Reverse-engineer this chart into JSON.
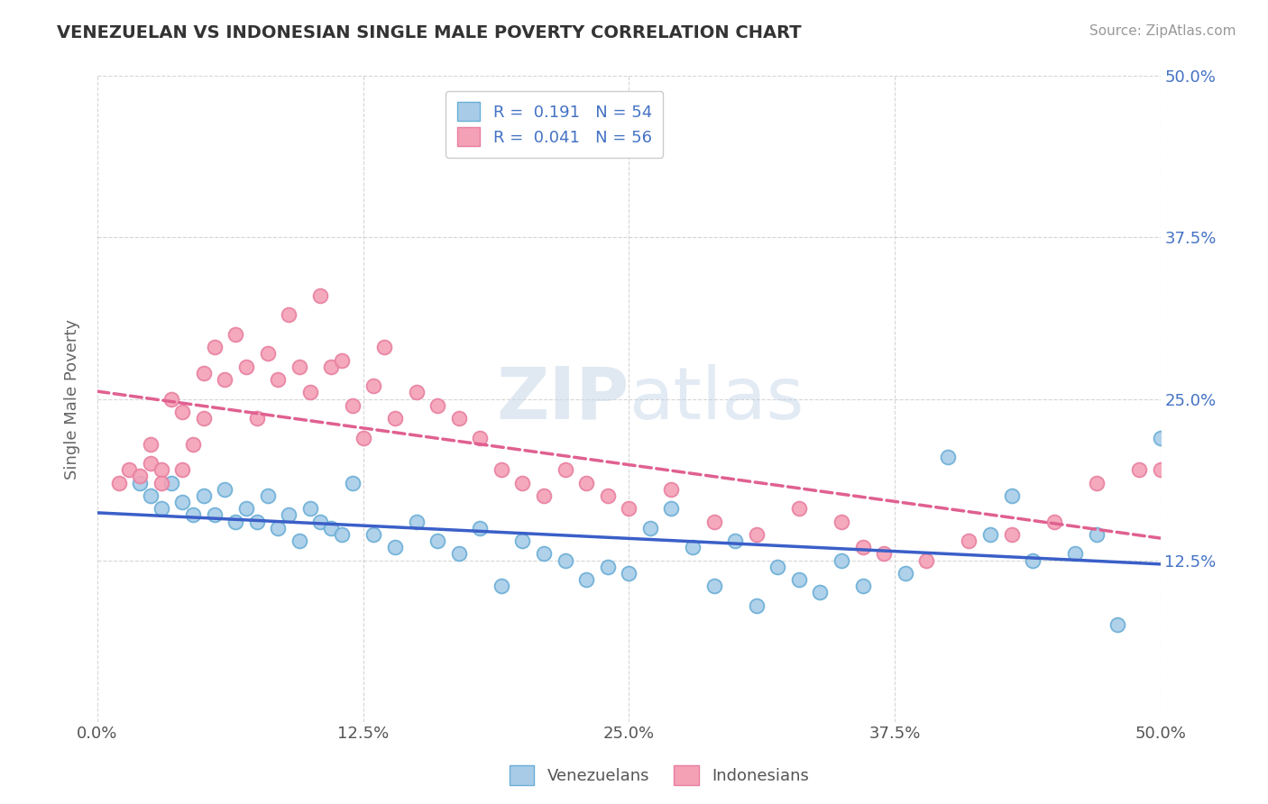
{
  "title": "VENEZUELAN VS INDONESIAN SINGLE MALE POVERTY CORRELATION CHART",
  "source": "Source: ZipAtlas.com",
  "ylabel": "Single Male Poverty",
  "xlim": [
    0.0,
    0.5
  ],
  "ylim": [
    0.0,
    0.5
  ],
  "xtick_labels": [
    "0.0%",
    "12.5%",
    "25.0%",
    "37.5%",
    "50.0%"
  ],
  "xtick_vals": [
    0.0,
    0.125,
    0.25,
    0.375,
    0.5
  ],
  "ytick_vals": [
    0.125,
    0.25,
    0.375,
    0.5
  ],
  "ytick_right_labels": [
    "12.5%",
    "25.0%",
    "37.5%",
    "50.0%"
  ],
  "legend_line1": "R =  0.191   N = 54",
  "legend_line2": "R =  0.041   N = 56",
  "color_venezuelan": "#a8cce8",
  "color_indonesian": "#f4a0b5",
  "color_venezuelan_edge": "#6aaed6",
  "color_indonesian_edge": "#e87fa0",
  "color_venezuelan_line": "#3a5fc8",
  "color_indonesian_line": "#e06090",
  "background_color": "#ffffff",
  "grid_color": "#cccccc",
  "venezuelan_x": [
    0.02,
    0.025,
    0.03,
    0.035,
    0.04,
    0.045,
    0.05,
    0.055,
    0.06,
    0.065,
    0.07,
    0.075,
    0.08,
    0.085,
    0.09,
    0.095,
    0.1,
    0.105,
    0.11,
    0.115,
    0.12,
    0.13,
    0.14,
    0.15,
    0.16,
    0.17,
    0.18,
    0.19,
    0.2,
    0.21,
    0.22,
    0.23,
    0.24,
    0.25,
    0.26,
    0.27,
    0.28,
    0.29,
    0.3,
    0.31,
    0.32,
    0.33,
    0.34,
    0.35,
    0.36,
    0.38,
    0.4,
    0.42,
    0.43,
    0.44,
    0.46,
    0.47,
    0.48,
    0.5
  ],
  "venezuelan_y": [
    0.185,
    0.175,
    0.165,
    0.185,
    0.17,
    0.16,
    0.175,
    0.16,
    0.18,
    0.155,
    0.165,
    0.155,
    0.175,
    0.15,
    0.16,
    0.14,
    0.165,
    0.155,
    0.15,
    0.145,
    0.185,
    0.145,
    0.135,
    0.155,
    0.14,
    0.13,
    0.15,
    0.105,
    0.14,
    0.13,
    0.125,
    0.11,
    0.12,
    0.115,
    0.15,
    0.165,
    0.135,
    0.105,
    0.14,
    0.09,
    0.12,
    0.11,
    0.1,
    0.125,
    0.105,
    0.115,
    0.205,
    0.145,
    0.175,
    0.125,
    0.13,
    0.145,
    0.075,
    0.22
  ],
  "indonesian_x": [
    0.01,
    0.015,
    0.02,
    0.025,
    0.025,
    0.03,
    0.03,
    0.035,
    0.04,
    0.04,
    0.045,
    0.05,
    0.05,
    0.055,
    0.06,
    0.065,
    0.07,
    0.075,
    0.08,
    0.085,
    0.09,
    0.095,
    0.1,
    0.105,
    0.11,
    0.115,
    0.12,
    0.125,
    0.13,
    0.135,
    0.14,
    0.15,
    0.16,
    0.17,
    0.18,
    0.19,
    0.2,
    0.21,
    0.22,
    0.23,
    0.24,
    0.25,
    0.27,
    0.29,
    0.31,
    0.33,
    0.35,
    0.37,
    0.39,
    0.41,
    0.43,
    0.45,
    0.47,
    0.49,
    0.5,
    0.36
  ],
  "indonesian_y": [
    0.185,
    0.195,
    0.19,
    0.2,
    0.215,
    0.195,
    0.185,
    0.25,
    0.24,
    0.195,
    0.215,
    0.27,
    0.235,
    0.29,
    0.265,
    0.3,
    0.275,
    0.235,
    0.285,
    0.265,
    0.315,
    0.275,
    0.255,
    0.33,
    0.275,
    0.28,
    0.245,
    0.22,
    0.26,
    0.29,
    0.235,
    0.255,
    0.245,
    0.235,
    0.22,
    0.195,
    0.185,
    0.175,
    0.195,
    0.185,
    0.175,
    0.165,
    0.18,
    0.155,
    0.145,
    0.165,
    0.155,
    0.13,
    0.125,
    0.14,
    0.145,
    0.155,
    0.185,
    0.195,
    0.195,
    0.135
  ]
}
